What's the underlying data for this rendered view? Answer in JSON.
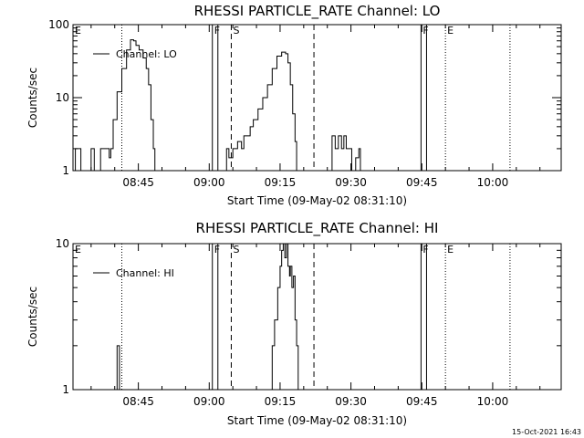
{
  "stamp": "15-Oct-2021 16:43",
  "chart_data": [
    {
      "type": "line",
      "title": "RHESSI PARTICLE_RATE Channel: LO",
      "xlabel": "Start Time (09-May-02 08:31:10)",
      "ylabel": "Counts/sec",
      "yscale": "log",
      "ylim": [
        1,
        100
      ],
      "ytick_values": [
        1,
        10,
        100
      ],
      "ytick_labels": [
        "1",
        "10",
        "100"
      ],
      "xlim": [
        "08:31:10",
        "10:14:30"
      ],
      "xtick_values": [
        "08:45",
        "09:00",
        "09:15",
        "09:30",
        "09:45",
        "10:00"
      ],
      "xtick_labels": [
        "08:45",
        "09:00",
        "09:15",
        "09:30",
        "09:45",
        "10:00"
      ],
      "legend": "top-left",
      "series": [
        {
          "name": "Channel: LO",
          "points": [
            [
              "08:31:10",
              1.0
            ],
            [
              "08:31:40",
              2.0
            ],
            [
              "08:32:30",
              2.0
            ],
            [
              "08:32:50",
              1.0
            ],
            [
              "08:34:40",
              1.0
            ],
            [
              "08:35:00",
              2.0
            ],
            [
              "08:35:40",
              1.0
            ],
            [
              "08:36:40",
              1.0
            ],
            [
              "08:37:00",
              2.0
            ],
            [
              "08:38:30",
              2.0
            ],
            [
              "08:38:50",
              1.5
            ],
            [
              "08:39:10",
              2.0
            ],
            [
              "08:39:40",
              5.0
            ],
            [
              "08:40:30",
              12.0
            ],
            [
              "08:41:30",
              25.0
            ],
            [
              "08:42:30",
              45.0
            ],
            [
              "08:43:20",
              62.0
            ],
            [
              "08:44:00",
              60.0
            ],
            [
              "08:44:30",
              52.0
            ],
            [
              "08:45:10",
              45.0
            ],
            [
              "08:46:00",
              35.0
            ],
            [
              "08:46:40",
              25.0
            ],
            [
              "08:47:10",
              15.0
            ],
            [
              "08:47:40",
              5.0
            ],
            [
              "08:48:10",
              2.0
            ],
            [
              "08:48:30",
              1.0
            ],
            [
              "09:03:20",
              1.0
            ],
            [
              "09:03:40",
              2.0
            ],
            [
              "09:04:10",
              1.5
            ],
            [
              "09:05:00",
              2.0
            ],
            [
              "09:06:00",
              2.5
            ],
            [
              "09:06:50",
              2.0
            ],
            [
              "09:07:20",
              3.0
            ],
            [
              "09:08:00",
              3.0
            ],
            [
              "09:08:40",
              4.0
            ],
            [
              "09:09:20",
              5.0
            ],
            [
              "09:10:20",
              7.0
            ],
            [
              "09:11:20",
              10.0
            ],
            [
              "09:12:20",
              15.0
            ],
            [
              "09:13:20",
              25.0
            ],
            [
              "09:14:20",
              37.0
            ],
            [
              "09:15:20",
              42.0
            ],
            [
              "09:16:10",
              40.0
            ],
            [
              "09:16:40",
              30.0
            ],
            [
              "09:17:10",
              15.0
            ],
            [
              "09:17:40",
              6.0
            ],
            [
              "09:18:10",
              2.5
            ],
            [
              "09:18:30",
              1.0
            ],
            [
              "09:25:40",
              1.0
            ],
            [
              "09:26:00",
              3.0
            ],
            [
              "09:26:40",
              2.0
            ],
            [
              "09:27:20",
              3.0
            ],
            [
              "09:28:00",
              2.0
            ],
            [
              "09:28:30",
              3.0
            ],
            [
              "09:29:00",
              2.0
            ],
            [
              "09:29:40",
              2.0
            ],
            [
              "09:30:10",
              1.0
            ],
            [
              "09:31:00",
              1.5
            ],
            [
              "09:31:40",
              2.0
            ],
            [
              "09:32:00",
              1.0
            ]
          ]
        }
      ],
      "markers": [
        {
          "label": "E",
          "time": "08:31:10",
          "style": "none"
        },
        {
          "label": "",
          "time": "08:41:30",
          "style": "dotted"
        },
        {
          "label": "F",
          "time": "09:00:40",
          "style": "solid"
        },
        {
          "label": "",
          "time": "09:01:50",
          "style": "solid"
        },
        {
          "label": "S",
          "time": "09:04:40",
          "style": "dashed"
        },
        {
          "label": "",
          "time": "09:22:10",
          "style": "dashed"
        },
        {
          "label": "F",
          "time": "09:44:50",
          "style": "solid"
        },
        {
          "label": "",
          "time": "09:46:00",
          "style": "solid"
        },
        {
          "label": "E",
          "time": "09:50:00",
          "style": "dotted"
        },
        {
          "label": "",
          "time": "10:03:40",
          "style": "dotted"
        }
      ]
    },
    {
      "type": "line",
      "title": "RHESSI PARTICLE_RATE Channel: HI",
      "xlabel": "Start Time (09-May-02 08:31:10)",
      "ylabel": "Counts/sec",
      "yscale": "log",
      "ylim": [
        1,
        10
      ],
      "ytick_values": [
        1,
        10
      ],
      "ytick_labels": [
        "1",
        "10"
      ],
      "xlim": [
        "08:31:10",
        "10:14:30"
      ],
      "xtick_values": [
        "08:45",
        "09:00",
        "09:15",
        "09:30",
        "09:45",
        "10:00"
      ],
      "xtick_labels": [
        "08:45",
        "09:00",
        "09:15",
        "09:30",
        "09:45",
        "10:00"
      ],
      "legend": "top-left",
      "series": [
        {
          "name": "Channel: HI",
          "points": [
            [
              "08:40:20",
              1.0
            ],
            [
              "08:40:30",
              2.0
            ],
            [
              "08:40:50",
              2.0
            ],
            [
              "08:41:00",
              1.0
            ],
            [
              "09:13:00",
              1.0
            ],
            [
              "09:13:20",
              2.0
            ],
            [
              "09:13:50",
              3.0
            ],
            [
              "09:14:30",
              5.0
            ],
            [
              "09:15:00",
              7.0
            ],
            [
              "09:15:20",
              9.0
            ],
            [
              "09:15:40",
              10.0
            ],
            [
              "09:16:00",
              8.0
            ],
            [
              "09:16:20",
              10.0
            ],
            [
              "09:16:40",
              7.0
            ],
            [
              "09:17:00",
              6.0
            ],
            [
              "09:17:10",
              7.0
            ],
            [
              "09:17:30",
              5.0
            ],
            [
              "09:17:50",
              6.0
            ],
            [
              "09:18:10",
              3.0
            ],
            [
              "09:18:30",
              2.0
            ],
            [
              "09:18:50",
              1.0
            ]
          ]
        }
      ],
      "markers": [
        {
          "label": "E",
          "time": "08:31:10",
          "style": "none"
        },
        {
          "label": "",
          "time": "08:41:30",
          "style": "dotted"
        },
        {
          "label": "F",
          "time": "09:00:40",
          "style": "solid"
        },
        {
          "label": "",
          "time": "09:01:50",
          "style": "solid"
        },
        {
          "label": "S",
          "time": "09:04:40",
          "style": "dashed"
        },
        {
          "label": "",
          "time": "09:22:10",
          "style": "dashed"
        },
        {
          "label": "F",
          "time": "09:44:50",
          "style": "solid"
        },
        {
          "label": "",
          "time": "09:46:00",
          "style": "solid"
        },
        {
          "label": "E",
          "time": "09:50:00",
          "style": "dotted"
        },
        {
          "label": "",
          "time": "10:03:40",
          "style": "dotted"
        }
      ]
    }
  ]
}
